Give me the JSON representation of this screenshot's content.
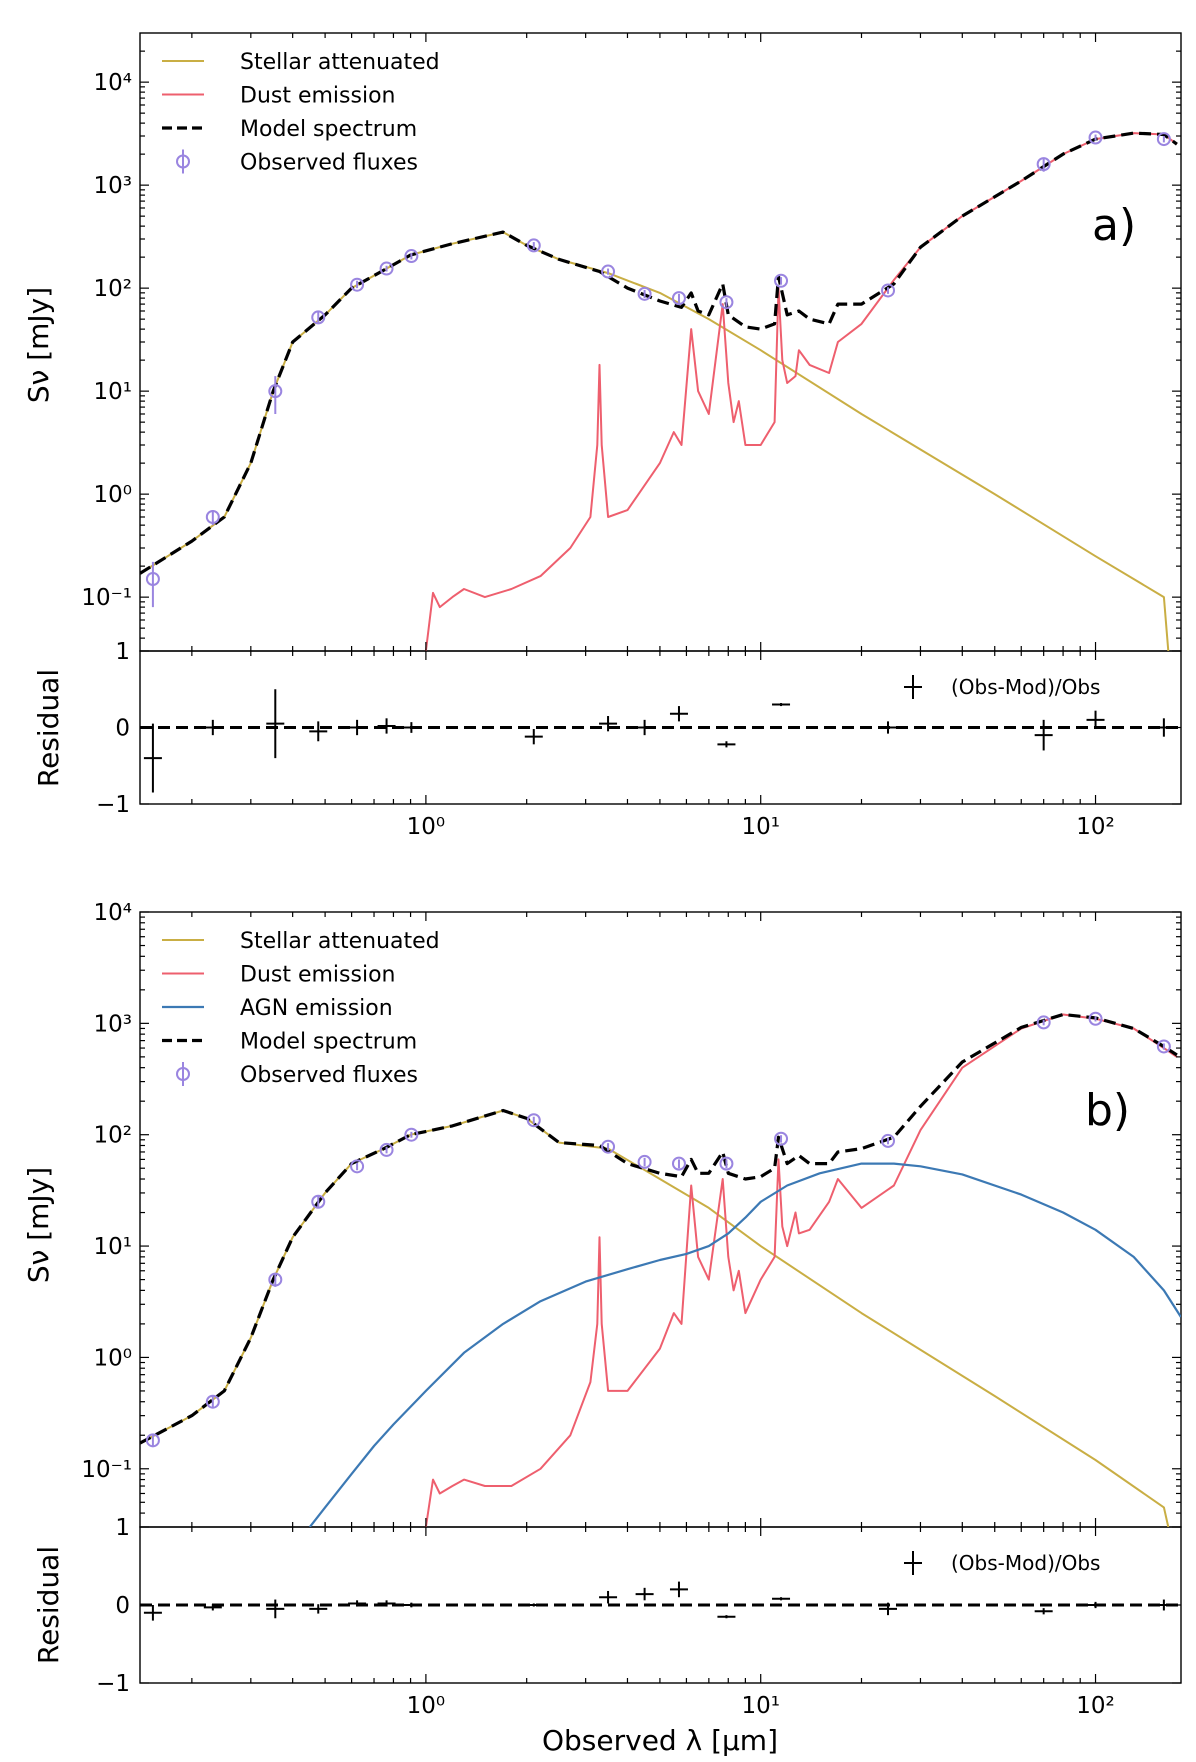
{
  "chart_data": [
    {
      "type": "line",
      "id": "a",
      "panel_label": "a)",
      "xscale": "log",
      "yscale": "log",
      "xlim": [
        0.14,
        180
      ],
      "ylim": [
        0.03,
        30000
      ],
      "ylabel": "Sν [mJy]",
      "legend": [
        "Stellar attenuated",
        "Dust emission",
        "Model spectrum",
        "Observed fluxes"
      ],
      "legend_location": "top-left",
      "colors": {
        "stellar": "#c9ae44",
        "dust": "#ee5f6e",
        "model": "#000000",
        "obs": "#9a85e0"
      },
      "y_ticks": [
        {
          "v": 0.1,
          "label": "10⁻¹"
        },
        {
          "v": 1,
          "label": "10⁰"
        },
        {
          "v": 10,
          "label": "10¹"
        },
        {
          "v": 100,
          "label": "10²"
        },
        {
          "v": 1000,
          "label": "10³"
        },
        {
          "v": 10000,
          "label": "10⁴"
        }
      ],
      "stellar": {
        "x": [
          0.14,
          0.2,
          0.25,
          0.3,
          0.35,
          0.4,
          0.5,
          0.6,
          0.75,
          0.9,
          1.2,
          1.7,
          2.0,
          2.5,
          3.5,
          5,
          7,
          10,
          20,
          50,
          100,
          160,
          165
        ],
        "y": [
          0.17,
          0.35,
          0.6,
          2,
          10,
          30,
          55,
          100,
          150,
          210,
          270,
          350,
          260,
          190,
          140,
          90,
          50,
          25,
          6,
          1,
          0.25,
          0.1,
          0.03
        ]
      },
      "dust": {
        "x": [
          1.0,
          1.05,
          1.1,
          1.2,
          1.3,
          1.5,
          1.8,
          2.2,
          2.7,
          3.1,
          3.25,
          3.3,
          3.35,
          3.5,
          4,
          5,
          5.5,
          5.8,
          6.2,
          6.5,
          7,
          7.7,
          8,
          8.3,
          8.6,
          9,
          10,
          11,
          11.3,
          11.6,
          12,
          12.7,
          13,
          14,
          16,
          17,
          20,
          25,
          30,
          40,
          60,
          80,
          100,
          130,
          160,
          175
        ],
        "y": [
          0.03,
          0.11,
          0.08,
          0.1,
          0.12,
          0.1,
          0.12,
          0.16,
          0.3,
          0.6,
          3,
          18,
          3,
          0.6,
          0.7,
          2,
          4,
          3,
          40,
          10,
          6,
          70,
          12,
          5,
          8,
          3,
          3,
          5,
          100,
          20,
          12,
          14,
          25,
          18,
          15,
          30,
          45,
          120,
          250,
          500,
          1100,
          2000,
          2800,
          3200,
          3100,
          2500
        ]
      },
      "model": {
        "x": [
          0.14,
          0.2,
          0.25,
          0.3,
          0.35,
          0.4,
          0.5,
          0.6,
          0.75,
          0.9,
          1.2,
          1.7,
          2.0,
          2.5,
          3.3,
          4,
          5,
          5.8,
          6.2,
          6.5,
          7,
          7.7,
          8,
          9,
          10,
          11,
          11.3,
          12,
          13,
          14,
          16,
          17,
          20,
          25,
          30,
          40,
          60,
          80,
          100,
          130,
          160,
          175
        ],
        "y": [
          0.17,
          0.35,
          0.6,
          2,
          10,
          30,
          55,
          100,
          150,
          210,
          270,
          350,
          260,
          190,
          145,
          100,
          75,
          65,
          90,
          60,
          55,
          110,
          55,
          42,
          40,
          45,
          130,
          55,
          60,
          50,
          45,
          70,
          70,
          110,
          250,
          500,
          1100,
          2000,
          2800,
          3200,
          3100,
          2500
        ]
      },
      "obs": [
        {
          "x": 0.153,
          "y": 0.15,
          "lo": 0.08,
          "hi": 0.22
        },
        {
          "x": 0.231,
          "y": 0.6,
          "lo": 0.5,
          "hi": 0.7
        },
        {
          "x": 0.355,
          "y": 10,
          "lo": 6,
          "hi": 14
        },
        {
          "x": 0.477,
          "y": 52,
          "lo": 45,
          "hi": 60
        },
        {
          "x": 0.623,
          "y": 108,
          "lo": 100,
          "hi": 118
        },
        {
          "x": 0.763,
          "y": 155,
          "lo": 145,
          "hi": 165
        },
        {
          "x": 0.905,
          "y": 205,
          "lo": 190,
          "hi": 220
        },
        {
          "x": 2.1,
          "y": 260,
          "lo": 240,
          "hi": 280
        },
        {
          "x": 3.5,
          "y": 145,
          "lo": 135,
          "hi": 155
        },
        {
          "x": 4.5,
          "y": 88,
          "lo": 80,
          "hi": 96
        },
        {
          "x": 5.7,
          "y": 80,
          "lo": 72,
          "hi": 88
        },
        {
          "x": 7.9,
          "y": 73,
          "lo": 66,
          "hi": 80
        },
        {
          "x": 11.5,
          "y": 118,
          "lo": 108,
          "hi": 128
        },
        {
          "x": 24,
          "y": 95,
          "lo": 88,
          "hi": 102
        },
        {
          "x": 70,
          "y": 1600,
          "lo": 1350,
          "hi": 1850
        },
        {
          "x": 100,
          "y": 2900,
          "lo": 2700,
          "hi": 3100
        },
        {
          "x": 160,
          "y": 2800,
          "lo": 2600,
          "hi": 3000
        }
      ],
      "residual": {
        "ylabel": "Residual",
        "ylim": [
          -1,
          1
        ],
        "y_ticks": [
          {
            "v": -1,
            "label": "−1"
          },
          {
            "v": 0,
            "label": "0"
          },
          {
            "v": 1,
            "label": "1"
          }
        ],
        "legend": "(Obs-Mod)/Obs",
        "points": [
          {
            "x": 0.153,
            "y": -0.4,
            "err": 0.45
          },
          {
            "x": 0.231,
            "y": 0.0,
            "err": 0.1
          },
          {
            "x": 0.355,
            "y": 0.05,
            "err": 0.45
          },
          {
            "x": 0.477,
            "y": -0.05,
            "err": 0.13
          },
          {
            "x": 0.623,
            "y": 0.0,
            "err": 0.1
          },
          {
            "x": 0.763,
            "y": 0.02,
            "err": 0.1
          },
          {
            "x": 0.905,
            "y": 0.0,
            "err": 0.07
          },
          {
            "x": 2.1,
            "y": -0.12,
            "err": 0.1
          },
          {
            "x": 3.5,
            "y": 0.05,
            "err": 0.1
          },
          {
            "x": 4.5,
            "y": 0.0,
            "err": 0.1
          },
          {
            "x": 5.7,
            "y": 0.18,
            "err": 0.1
          },
          {
            "x": 7.9,
            "y": -0.22,
            "err": 0.04
          },
          {
            "x": 11.5,
            "y": 0.3,
            "err": 0.02
          },
          {
            "x": 24,
            "y": 0.0,
            "err": 0.08
          },
          {
            "x": 70,
            "y": -0.1,
            "err": 0.2
          },
          {
            "x": 100,
            "y": 0.1,
            "err": 0.12
          },
          {
            "x": 160,
            "y": 0.0,
            "err": 0.12
          }
        ]
      }
    },
    {
      "type": "line",
      "id": "b",
      "panel_label": "b)",
      "xscale": "log",
      "yscale": "log",
      "xlim": [
        0.14,
        180
      ],
      "ylim": [
        0.03,
        10000
      ],
      "ylabel": "Sν [mJy]",
      "xlabel": "Observed λ [μm]",
      "legend": [
        "Stellar attenuated",
        "Dust emission",
        "AGN emission",
        "Model spectrum",
        "Observed fluxes"
      ],
      "legend_location": "top-left",
      "colors": {
        "stellar": "#c9ae44",
        "dust": "#ee5f6e",
        "agn": "#3c79b4",
        "model": "#000000",
        "obs": "#9a85e0"
      },
      "y_ticks": [
        {
          "v": 0.1,
          "label": "10⁻¹"
        },
        {
          "v": 1,
          "label": "10⁰"
        },
        {
          "v": 10,
          "label": "10¹"
        },
        {
          "v": 100,
          "label": "10²"
        },
        {
          "v": 1000,
          "label": "10³"
        },
        {
          "v": 10000,
          "label": "10⁴"
        }
      ],
      "x_ticks": [
        {
          "v": 1,
          "label": "10⁰"
        },
        {
          "v": 10,
          "label": "10¹"
        },
        {
          "v": 100,
          "label": "10²"
        }
      ],
      "stellar": {
        "x": [
          0.14,
          0.2,
          0.25,
          0.3,
          0.35,
          0.4,
          0.5,
          0.6,
          0.75,
          0.9,
          1.2,
          1.7,
          2.0,
          2.5,
          3.5,
          5,
          7,
          10,
          20,
          50,
          100,
          160,
          165
        ],
        "y": [
          0.17,
          0.3,
          0.5,
          1.5,
          5,
          12,
          30,
          55,
          75,
          100,
          120,
          165,
          140,
          85,
          75,
          40,
          22,
          10,
          2.5,
          0.45,
          0.12,
          0.045,
          0.03
        ]
      },
      "dust": {
        "x": [
          1.0,
          1.05,
          1.1,
          1.2,
          1.3,
          1.5,
          1.8,
          2.2,
          2.7,
          3.1,
          3.25,
          3.3,
          3.35,
          3.5,
          4,
          5,
          5.5,
          5.8,
          6.2,
          6.5,
          7,
          7.7,
          8,
          8.3,
          8.6,
          9,
          10,
          11,
          11.3,
          11.6,
          12,
          12.7,
          13,
          14,
          16,
          17,
          20,
          25,
          30,
          40,
          60,
          80,
          100,
          130,
          160,
          175
        ],
        "y": [
          0.03,
          0.08,
          0.06,
          0.07,
          0.08,
          0.07,
          0.07,
          0.1,
          0.2,
          0.6,
          2,
          12,
          2,
          0.5,
          0.5,
          1.2,
          2.5,
          2,
          35,
          8,
          5,
          40,
          8,
          4,
          6,
          2.5,
          5,
          8,
          60,
          15,
          10,
          20,
          13,
          14,
          25,
          40,
          22,
          35,
          110,
          400,
          900,
          1200,
          1100,
          900,
          600,
          500
        ]
      },
      "agn": {
        "x": [
          0.45,
          0.5,
          0.6,
          0.7,
          0.8,
          1.0,
          1.3,
          1.7,
          2.2,
          3,
          4,
          5,
          6,
          7,
          8,
          9,
          10,
          12,
          15,
          20,
          25,
          30,
          40,
          60,
          80,
          100,
          130,
          160,
          180
        ],
        "y": [
          0.03,
          0.045,
          0.09,
          0.16,
          0.25,
          0.5,
          1.1,
          2,
          3.2,
          4.8,
          6.2,
          7.5,
          8.5,
          10,
          13,
          18,
          25,
          35,
          45,
          55,
          55,
          52,
          44,
          29,
          20,
          14,
          8,
          4,
          2.3
        ]
      },
      "model": {
        "x": [
          0.14,
          0.2,
          0.25,
          0.3,
          0.35,
          0.4,
          0.5,
          0.6,
          0.75,
          0.9,
          1.2,
          1.7,
          2.0,
          2.5,
          3.3,
          4,
          5,
          5.8,
          6.2,
          6.5,
          7,
          7.7,
          8,
          9,
          10,
          11,
          11.3,
          12,
          13,
          14,
          16,
          17,
          20,
          25,
          30,
          40,
          60,
          80,
          100,
          130,
          160,
          175
        ],
        "y": [
          0.17,
          0.3,
          0.5,
          1.5,
          5,
          12,
          30,
          55,
          75,
          100,
          120,
          165,
          140,
          85,
          80,
          55,
          45,
          42,
          60,
          45,
          45,
          70,
          45,
          40,
          42,
          50,
          95,
          55,
          65,
          55,
          55,
          70,
          75,
          95,
          180,
          450,
          920,
          1200,
          1120,
          900,
          620,
          520
        ]
      },
      "obs": [
        {
          "x": 0.153,
          "y": 0.18,
          "lo": 0.16,
          "hi": 0.2
        },
        {
          "x": 0.231,
          "y": 0.4,
          "lo": 0.35,
          "hi": 0.45
        },
        {
          "x": 0.355,
          "y": 5,
          "lo": 4.3,
          "hi": 5.7
        },
        {
          "x": 0.477,
          "y": 25,
          "lo": 22,
          "hi": 28
        },
        {
          "x": 0.623,
          "y": 52,
          "lo": 48,
          "hi": 56
        },
        {
          "x": 0.763,
          "y": 73,
          "lo": 68,
          "hi": 78
        },
        {
          "x": 0.905,
          "y": 100,
          "lo": 94,
          "hi": 106
        },
        {
          "x": 2.1,
          "y": 135,
          "lo": 125,
          "hi": 145
        },
        {
          "x": 3.5,
          "y": 78,
          "lo": 72,
          "hi": 84
        },
        {
          "x": 4.5,
          "y": 57,
          "lo": 52,
          "hi": 62
        },
        {
          "x": 5.7,
          "y": 55,
          "lo": 50,
          "hi": 60
        },
        {
          "x": 7.9,
          "y": 55,
          "lo": 50,
          "hi": 60
        },
        {
          "x": 11.5,
          "y": 92,
          "lo": 85,
          "hi": 99
        },
        {
          "x": 24,
          "y": 88,
          "lo": 82,
          "hi": 94
        },
        {
          "x": 70,
          "y": 1020,
          "lo": 960,
          "hi": 1080
        },
        {
          "x": 100,
          "y": 1100,
          "lo": 1040,
          "hi": 1160
        },
        {
          "x": 160,
          "y": 620,
          "lo": 580,
          "hi": 660
        }
      ],
      "residual": {
        "ylabel": "Residual",
        "ylim": [
          -1,
          1
        ],
        "y_ticks": [
          {
            "v": -1,
            "label": "−1"
          },
          {
            "v": 0,
            "label": "0"
          },
          {
            "v": 1,
            "label": "1"
          }
        ],
        "x_ticks": [
          {
            "v": 1,
            "label": "10⁰"
          },
          {
            "v": 10,
            "label": "10¹"
          },
          {
            "v": 100,
            "label": "10²"
          }
        ],
        "legend": "(Obs-Mod)/Obs",
        "points": [
          {
            "x": 0.153,
            "y": -0.1,
            "err": 0.1
          },
          {
            "x": 0.231,
            "y": -0.03,
            "err": 0.04
          },
          {
            "x": 0.355,
            "y": -0.05,
            "err": 0.12
          },
          {
            "x": 0.477,
            "y": -0.05,
            "err": 0.06
          },
          {
            "x": 0.623,
            "y": 0.02,
            "err": 0.04
          },
          {
            "x": 0.763,
            "y": 0.02,
            "err": 0.04
          },
          {
            "x": 0.905,
            "y": 0.0,
            "err": 0.03
          },
          {
            "x": 2.1,
            "y": 0.0,
            "err": 0.02
          },
          {
            "x": 3.5,
            "y": 0.1,
            "err": 0.08
          },
          {
            "x": 4.5,
            "y": 0.14,
            "err": 0.08
          },
          {
            "x": 5.7,
            "y": 0.2,
            "err": 0.1
          },
          {
            "x": 7.9,
            "y": -0.15,
            "err": 0.02
          },
          {
            "x": 11.5,
            "y": 0.08,
            "err": 0.02
          },
          {
            "x": 24,
            "y": -0.05,
            "err": 0.08
          },
          {
            "x": 70,
            "y": -0.08,
            "err": 0.04
          },
          {
            "x": 100,
            "y": 0.0,
            "err": 0.04
          },
          {
            "x": 160,
            "y": 0.0,
            "err": 0.07
          }
        ]
      }
    }
  ]
}
